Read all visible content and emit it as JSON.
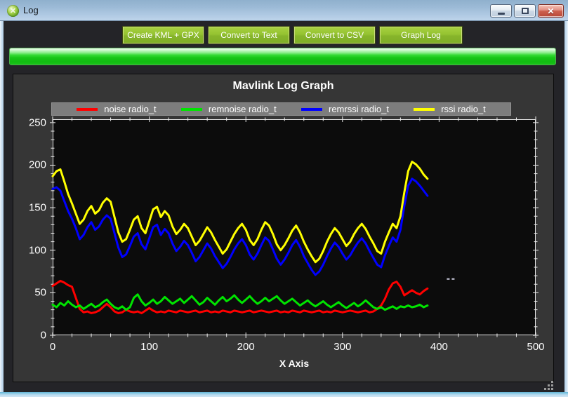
{
  "window": {
    "title": "Log"
  },
  "toolbar": {
    "buttons": [
      "Create KML + GPX",
      "Convert to Text",
      "Convert to CSV",
      "Graph Log"
    ]
  },
  "progress": {
    "percent": 100
  },
  "colors": {
    "button_green": "#94c230",
    "progress_green": "#1ec81e",
    "panel_gray": "#363636",
    "plot_background": "#0c0c0c",
    "legend_background": "#7d7d7d",
    "titlebar_blue": "#a8c3dd"
  },
  "chart_data": {
    "type": "line",
    "title": "Mavlink Log Graph",
    "xlabel": "X Axis",
    "ylabel": "",
    "legend_position": "top",
    "grid": false,
    "xlim": [
      0,
      500
    ],
    "ylim": [
      0,
      254
    ],
    "x_ticks": [
      0,
      100,
      200,
      300,
      400,
      500
    ],
    "y_ticks": [
      0,
      50,
      100,
      150,
      200,
      250
    ],
    "x_major_step": 100,
    "x_minor_step": 20,
    "y_major_step": 50,
    "y_minor_step": 10,
    "artifact": {
      "x": 408,
      "y": 67
    },
    "x": [
      0,
      4,
      8,
      12,
      16,
      20,
      24,
      28,
      32,
      36,
      40,
      44,
      48,
      52,
      56,
      60,
      64,
      68,
      72,
      76,
      80,
      84,
      88,
      92,
      96,
      100,
      104,
      108,
      112,
      116,
      120,
      124,
      128,
      132,
      136,
      140,
      144,
      148,
      152,
      156,
      160,
      164,
      168,
      172,
      176,
      180,
      184,
      188,
      192,
      196,
      200,
      204,
      208,
      212,
      216,
      220,
      224,
      228,
      232,
      236,
      240,
      244,
      248,
      252,
      256,
      260,
      264,
      268,
      272,
      276,
      280,
      284,
      288,
      292,
      296,
      300,
      304,
      308,
      312,
      316,
      320,
      324,
      328,
      332,
      336,
      340,
      344,
      348,
      352,
      356,
      360,
      364,
      368,
      372,
      376,
      380,
      384,
      388
    ],
    "series": [
      {
        "name": "noise radio_t",
        "color": "#ff0000",
        "values": [
          58,
          61,
          64,
          62,
          59,
          57,
          44,
          31,
          27,
          28,
          26,
          27,
          29,
          33,
          37,
          33,
          28,
          26,
          27,
          30,
          28,
          27,
          28,
          26,
          29,
          32,
          29,
          27,
          28,
          27,
          29,
          28,
          27,
          29,
          28,
          27,
          28,
          29,
          27,
          28,
          29,
          27,
          28,
          27,
          29,
          28,
          27,
          29,
          28,
          27,
          28,
          29,
          27,
          28,
          29,
          28,
          27,
          28,
          29,
          27,
          28,
          27,
          29,
          28,
          27,
          29,
          28,
          27,
          28,
          29,
          27,
          28,
          27,
          29,
          28,
          27,
          28,
          29,
          28,
          27,
          28,
          29,
          27,
          28,
          31,
          35,
          43,
          54,
          61,
          63,
          57,
          47,
          50,
          53,
          50,
          48,
          52,
          55
        ]
      },
      {
        "name": "remnoise radio_t",
        "color": "#00e400",
        "values": [
          36,
          33,
          38,
          35,
          40,
          36,
          33,
          35,
          31,
          34,
          37,
          33,
          35,
          39,
          42,
          37,
          33,
          31,
          34,
          30,
          33,
          44,
          48,
          40,
          35,
          38,
          42,
          37,
          40,
          45,
          41,
          37,
          40,
          43,
          38,
          42,
          46,
          41,
          36,
          39,
          44,
          40,
          36,
          41,
          45,
          40,
          43,
          47,
          42,
          38,
          42,
          46,
          41,
          37,
          40,
          44,
          40,
          43,
          46,
          41,
          37,
          40,
          43,
          39,
          35,
          38,
          41,
          37,
          34,
          37,
          40,
          36,
          33,
          36,
          39,
          35,
          32,
          35,
          38,
          34,
          37,
          41,
          37,
          33,
          31,
          33,
          30,
          32,
          34,
          31,
          34,
          33,
          35,
          33,
          34,
          36,
          33,
          35
        ]
      },
      {
        "name": "remrssi radio_t",
        "color": "#0000ff",
        "values": [
          172,
          174,
          170,
          158,
          146,
          137,
          126,
          113,
          118,
          127,
          133,
          124,
          128,
          136,
          141,
          137,
          120,
          103,
          92,
          95,
          105,
          116,
          120,
          107,
          101,
          114,
          127,
          130,
          118,
          125,
          120,
          108,
          99,
          104,
          111,
          106,
          97,
          87,
          92,
          100,
          108,
          102,
          93,
          86,
          79,
          84,
          92,
          101,
          108,
          113,
          106,
          95,
          89,
          96,
          106,
          115,
          111,
          101,
          90,
          83,
          89,
          97,
          106,
          112,
          104,
          93,
          85,
          77,
          71,
          75,
          83,
          93,
          102,
          109,
          104,
          96,
          89,
          94,
          102,
          109,
          114,
          108,
          99,
          91,
          83,
          80,
          94,
          105,
          115,
          110,
          124,
          152,
          176,
          184,
          181,
          176,
          170,
          164
        ]
      },
      {
        "name": "rssi radio_t",
        "color": "#ffff00",
        "values": [
          187,
          193,
          195,
          181,
          166,
          155,
          143,
          131,
          136,
          146,
          152,
          143,
          147,
          156,
          161,
          157,
          139,
          121,
          110,
          113,
          124,
          136,
          140,
          126,
          120,
          134,
          148,
          151,
          139,
          146,
          141,
          128,
          119,
          124,
          131,
          126,
          116,
          106,
          111,
          119,
          127,
          121,
          112,
          104,
          96,
          101,
          110,
          119,
          126,
          131,
          124,
          112,
          106,
          113,
          124,
          133,
          129,
          119,
          107,
          100,
          106,
          114,
          123,
          129,
          121,
          110,
          101,
          93,
          86,
          90,
          99,
          110,
          119,
          126,
          121,
          113,
          105,
          110,
          119,
          126,
          131,
          125,
          116,
          108,
          99,
          96,
          110,
          121,
          131,
          126,
          140,
          168,
          193,
          204,
          201,
          196,
          189,
          184
        ]
      }
    ]
  }
}
